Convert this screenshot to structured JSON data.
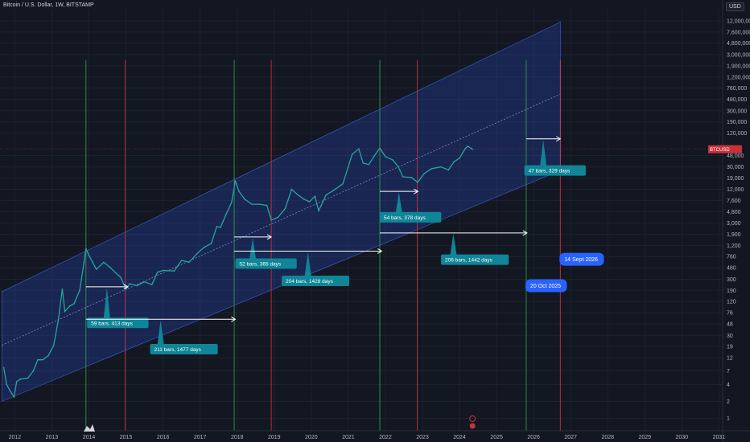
{
  "header": {
    "title": "Bitcoin / U.S. Dollar, 1W, BITSTAMP",
    "currency": "USD"
  },
  "chart_data": {
    "type": "line",
    "title": "Bitcoin / U.S. Dollar, 1W, BITSTAMP",
    "y_scale": "log",
    "xlim": [
      2011.6,
      2031.1
    ],
    "ylim": [
      0.6,
      19000000
    ],
    "y_ticks": [
      {
        "label": "12,000,000",
        "v": 12000000
      },
      {
        "label": "7,600,000",
        "v": 7600000
      },
      {
        "label": "4,800,000",
        "v": 4800000
      },
      {
        "label": "3,000,000",
        "v": 3000000
      },
      {
        "label": "1,900,000",
        "v": 1900000
      },
      {
        "label": "1,200,000",
        "v": 1200000
      },
      {
        "label": "760,000",
        "v": 760000
      },
      {
        "label": "480,000",
        "v": 480000
      },
      {
        "label": "300,000",
        "v": 300000
      },
      {
        "label": "190,000",
        "v": 190000
      },
      {
        "label": "120,000",
        "v": 120000
      },
      {
        "label": "48,000",
        "v": 48000
      },
      {
        "label": "30,000",
        "v": 30000
      },
      {
        "label": "19,000",
        "v": 19000
      },
      {
        "label": "12,000",
        "v": 12000
      },
      {
        "label": "7,600",
        "v": 7600
      },
      {
        "label": "4,800",
        "v": 4800
      },
      {
        "label": "3,000",
        "v": 3000
      },
      {
        "label": "1,900",
        "v": 1900
      },
      {
        "label": "1,200",
        "v": 1200
      },
      {
        "label": "760",
        "v": 760
      },
      {
        "label": "480",
        "v": 480
      },
      {
        "label": "300",
        "v": 300
      },
      {
        "label": "190",
        "v": 190
      },
      {
        "label": "120",
        "v": 120
      },
      {
        "label": "76",
        "v": 76
      },
      {
        "label": "48",
        "v": 48
      },
      {
        "label": "30",
        "v": 30
      },
      {
        "label": "19",
        "v": 19
      },
      {
        "label": "12",
        "v": 12
      },
      {
        "label": "7",
        "v": 7
      },
      {
        "label": "4",
        "v": 4
      },
      {
        "label": "2",
        "v": 2
      },
      {
        "label": "1",
        "v": 1
      }
    ],
    "x_ticks": [
      2012,
      2013,
      2014,
      2015,
      2016,
      2017,
      2018,
      2019,
      2020,
      2021,
      2022,
      2023,
      2024,
      2025,
      2026,
      2027,
      2028,
      2029,
      2030,
      2031
    ],
    "price_label": {
      "symbol": "BTCUSD",
      "v": 62000
    },
    "series": [
      {
        "color": "#26a69a",
        "points": [
          [
            2011.7,
            8
          ],
          [
            2011.78,
            4
          ],
          [
            2011.88,
            3
          ],
          [
            2011.98,
            2.4
          ],
          [
            2012.05,
            4.5
          ],
          [
            2012.15,
            5
          ],
          [
            2012.35,
            5.2
          ],
          [
            2012.5,
            7
          ],
          [
            2012.62,
            11
          ],
          [
            2012.75,
            11
          ],
          [
            2012.9,
            13
          ],
          [
            2013.05,
            20
          ],
          [
            2013.18,
            60
          ],
          [
            2013.28,
            200
          ],
          [
            2013.35,
            80
          ],
          [
            2013.48,
            100
          ],
          [
            2013.6,
            110
          ],
          [
            2013.75,
            190
          ],
          [
            2013.87,
            600
          ],
          [
            2013.92,
            1050
          ],
          [
            2014.0,
            800
          ],
          [
            2014.1,
            600
          ],
          [
            2014.2,
            450
          ],
          [
            2014.4,
            600
          ],
          [
            2014.55,
            500
          ],
          [
            2014.7,
            400
          ],
          [
            2014.85,
            330
          ],
          [
            2015.0,
            200
          ],
          [
            2015.1,
            250
          ],
          [
            2015.3,
            230
          ],
          [
            2015.5,
            270
          ],
          [
            2015.7,
            240
          ],
          [
            2015.85,
            400
          ],
          [
            2016.0,
            430
          ],
          [
            2016.3,
            420
          ],
          [
            2016.5,
            650
          ],
          [
            2016.7,
            600
          ],
          [
            2016.95,
            900
          ],
          [
            2017.1,
            1100
          ],
          [
            2017.3,
            1300
          ],
          [
            2017.45,
            2600
          ],
          [
            2017.55,
            2500
          ],
          [
            2017.7,
            4300
          ],
          [
            2017.85,
            7000
          ],
          [
            2017.95,
            17000
          ],
          [
            2018.05,
            11000
          ],
          [
            2018.2,
            8000
          ],
          [
            2018.4,
            6500
          ],
          [
            2018.6,
            6500
          ],
          [
            2018.8,
            6200
          ],
          [
            2018.92,
            3400
          ],
          [
            2019.1,
            3800
          ],
          [
            2019.3,
            5500
          ],
          [
            2019.47,
            12000
          ],
          [
            2019.6,
            10000
          ],
          [
            2019.8,
            8000
          ],
          [
            2019.95,
            7200
          ],
          [
            2020.1,
            9000
          ],
          [
            2020.2,
            5000
          ],
          [
            2020.4,
            9500
          ],
          [
            2020.6,
            11500
          ],
          [
            2020.85,
            15000
          ],
          [
            2020.99,
            29000
          ],
          [
            2021.1,
            50000
          ],
          [
            2021.28,
            63000
          ],
          [
            2021.4,
            35000
          ],
          [
            2021.55,
            33000
          ],
          [
            2021.7,
            47000
          ],
          [
            2021.85,
            65000
          ],
          [
            2022.0,
            46000
          ],
          [
            2022.2,
            40000
          ],
          [
            2022.35,
            30000
          ],
          [
            2022.47,
            20000
          ],
          [
            2022.7,
            19500
          ],
          [
            2022.87,
            16000
          ],
          [
            2023.05,
            23000
          ],
          [
            2023.25,
            28000
          ],
          [
            2023.5,
            30000
          ],
          [
            2023.7,
            26500
          ],
          [
            2023.85,
            37000
          ],
          [
            2024.0,
            43000
          ],
          [
            2024.15,
            63000
          ],
          [
            2024.22,
            70000
          ],
          [
            2024.35,
            62000
          ]
        ]
      }
    ],
    "channel": {
      "upper": [
        [
          2011.65,
          180
        ],
        [
          2026.73,
          11500000
        ]
      ],
      "lower": [
        [
          2011.65,
          2
        ],
        [
          2026.73,
          26000
        ]
      ],
      "mid": [
        [
          2011.65,
          20
        ],
        [
          2026.73,
          600000
        ]
      ]
    },
    "green_lines": [
      2013.92,
      2017.92,
      2021.85,
      2025.8
    ],
    "red_lines": [
      2014.98,
      2018.92,
      2022.86,
      2026.72
    ],
    "annotations": [
      {
        "label": "59 bars, 413 days",
        "arrow": [
          2013.92,
          2015.05,
          220
        ],
        "box": [
          2013.95,
          50
        ]
      },
      {
        "label": "211 bars, 1477 days",
        "arrow": [
          2013.92,
          2017.95,
          58
        ],
        "box": [
          2015.65,
          17
        ]
      },
      {
        "label": "52 bars, 365 days",
        "arrow": [
          2017.92,
          2018.92,
          1700
        ],
        "box": [
          2017.95,
          570
        ]
      },
      {
        "label": "204 bars, 1428 days",
        "arrow": [
          2017.92,
          2021.9,
          950
        ],
        "box": [
          2019.2,
          280
        ]
      },
      {
        "label": "54 bars, 378 days",
        "arrow": [
          2021.85,
          2022.88,
          11000
        ],
        "box": [
          2021.85,
          3800
        ]
      },
      {
        "label": "206 bars, 1442 days",
        "arrow": [
          2021.85,
          2025.82,
          2000
        ],
        "box": [
          2023.5,
          670
        ]
      },
      {
        "label": "47 bars, 329 days",
        "arrow": [
          2025.8,
          2026.72,
          95000
        ],
        "box": [
          2025.75,
          26000
        ]
      }
    ],
    "date_labels": [
      {
        "label": "14 Sept 2026",
        "x": 2026.72,
        "v": 680
      },
      {
        "label": "20 Oct 2025",
        "x": 2025.8,
        "v": 230
      }
    ]
  }
}
